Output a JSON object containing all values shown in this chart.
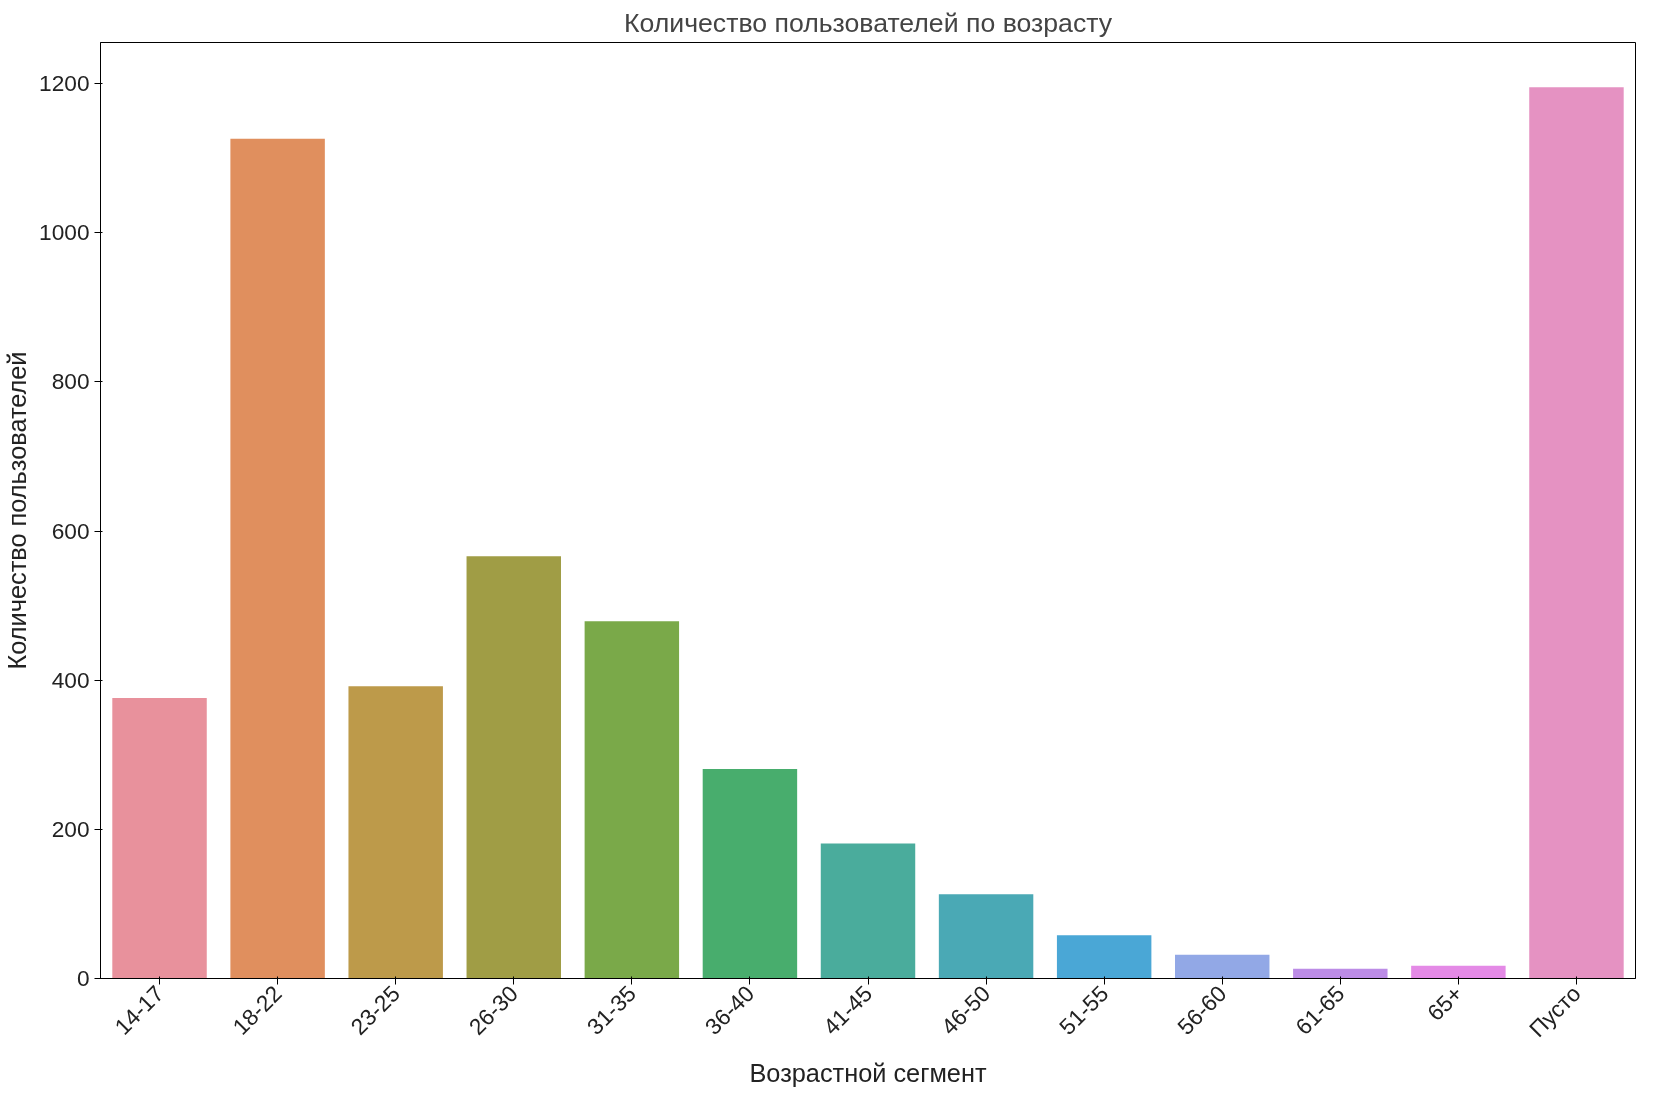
{
  "chart_data": {
    "type": "bar",
    "title": "Количество пользователей по возрасту",
    "xlabel": "Возрастной сегмент",
    "ylabel": "Количество пользователей",
    "categories": [
      "14-17",
      "18-22",
      "23-25",
      "26-30",
      "31-35",
      "36-40",
      "41-45",
      "46-50",
      "51-55",
      "56-60",
      "61-65",
      "65+",
      "Пусто"
    ],
    "values": [
      376,
      1126,
      392,
      566,
      479,
      281,
      181,
      113,
      58,
      32,
      13,
      17,
      1195
    ],
    "colors": [
      "#e8919c",
      "#e08f5e",
      "#bd9a4a",
      "#a09d45",
      "#7aa949",
      "#48ad6d",
      "#4aac9c",
      "#4aa9b5",
      "#4aa7d6",
      "#92a8e6",
      "#bc8ce6",
      "#e48ae6",
      "#e592c2"
    ],
    "ylim": [
      0,
      1255
    ],
    "yticks": [
      0,
      200,
      400,
      600,
      800,
      1000,
      1200
    ],
    "grid": false
  }
}
